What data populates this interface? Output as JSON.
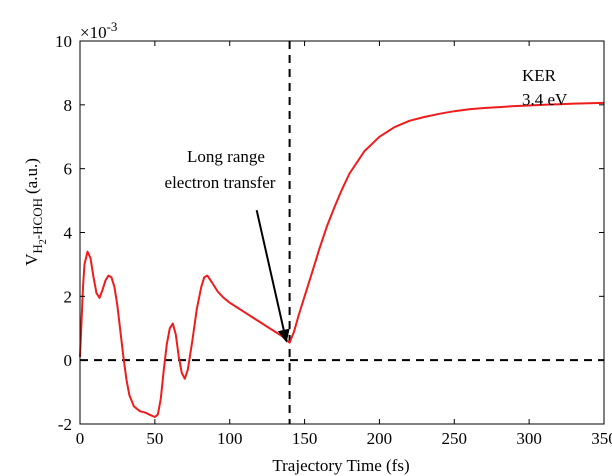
{
  "chart_data": {
    "type": "line",
    "xlabel": "Trajectory Time (fs)",
    "ylabel_main": "V",
    "ylabel_subscript": "H",
    "ylabel_subscript2": "2",
    "ylabel_rest": "-HCOH",
    "ylabel_unit": "(a.u.)",
    "y_multiplier_base": "×10",
    "y_multiplier_exp": "-3",
    "xlim": [
      0,
      350
    ],
    "ylim": [
      -2,
      10
    ],
    "x_ticks": [
      0,
      50,
      100,
      150,
      200,
      250,
      300,
      350
    ],
    "y_ticks": [
      -2,
      0,
      2,
      4,
      6,
      8,
      10
    ],
    "hline_y": 0,
    "vline_x": 140,
    "annotations": {
      "transfer_line1": "Long range",
      "transfer_line2": "electron transfer",
      "ker_line1": "KER",
      "ker_line2": "3.4 eV"
    },
    "arrow_tip": [
      138,
      0.55
    ],
    "arrow_tail": [
      118,
      4.7
    ],
    "series": [
      {
        "color": "#ee1c1c",
        "points": [
          [
            0,
            0.1
          ],
          [
            1,
            1.2
          ],
          [
            2,
            2.3
          ],
          [
            3,
            3.0
          ],
          [
            5,
            3.4
          ],
          [
            7,
            3.2
          ],
          [
            9,
            2.6
          ],
          [
            11,
            2.1
          ],
          [
            13,
            1.95
          ],
          [
            15,
            2.2
          ],
          [
            17,
            2.5
          ],
          [
            19,
            2.65
          ],
          [
            21,
            2.6
          ],
          [
            23,
            2.3
          ],
          [
            25,
            1.7
          ],
          [
            27,
            0.9
          ],
          [
            29,
            0.1
          ],
          [
            31,
            -0.6
          ],
          [
            33,
            -1.1
          ],
          [
            36,
            -1.45
          ],
          [
            40,
            -1.6
          ],
          [
            44,
            -1.65
          ],
          [
            47,
            -1.72
          ],
          [
            50,
            -1.78
          ],
          [
            52,
            -1.7
          ],
          [
            54,
            -1.2
          ],
          [
            56,
            -0.3
          ],
          [
            58,
            0.5
          ],
          [
            60,
            1.0
          ],
          [
            62,
            1.15
          ],
          [
            64,
            0.8
          ],
          [
            66,
            0.1
          ],
          [
            68,
            -0.4
          ],
          [
            70,
            -0.58
          ],
          [
            72,
            -0.3
          ],
          [
            75,
            0.6
          ],
          [
            78,
            1.6
          ],
          [
            81,
            2.3
          ],
          [
            83,
            2.6
          ],
          [
            85,
            2.65
          ],
          [
            88,
            2.45
          ],
          [
            92,
            2.15
          ],
          [
            96,
            1.95
          ],
          [
            100,
            1.8
          ],
          [
            105,
            1.65
          ],
          [
            110,
            1.5
          ],
          [
            115,
            1.35
          ],
          [
            120,
            1.2
          ],
          [
            125,
            1.05
          ],
          [
            130,
            0.9
          ],
          [
            135,
            0.75
          ],
          [
            138,
            0.62
          ],
          [
            140,
            0.55
          ],
          [
            143,
            0.9
          ],
          [
            146,
            1.4
          ],
          [
            150,
            2.0
          ],
          [
            155,
            2.75
          ],
          [
            160,
            3.5
          ],
          [
            165,
            4.2
          ],
          [
            170,
            4.8
          ],
          [
            175,
            5.35
          ],
          [
            180,
            5.85
          ],
          [
            190,
            6.55
          ],
          [
            200,
            7.0
          ],
          [
            210,
            7.3
          ],
          [
            220,
            7.5
          ],
          [
            230,
            7.62
          ],
          [
            240,
            7.72
          ],
          [
            250,
            7.8
          ],
          [
            260,
            7.86
          ],
          [
            270,
            7.9
          ],
          [
            280,
            7.93
          ],
          [
            290,
            7.96
          ],
          [
            300,
            7.98
          ],
          [
            310,
            8.0
          ],
          [
            320,
            8.02
          ],
          [
            330,
            8.04
          ],
          [
            340,
            8.05
          ],
          [
            350,
            8.06
          ]
        ]
      }
    ]
  }
}
